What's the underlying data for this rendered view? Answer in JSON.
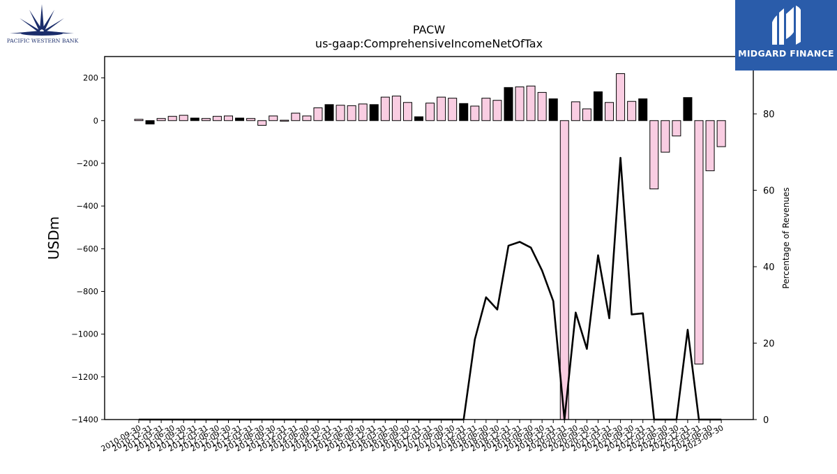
{
  "branding": {
    "left_logo_text": "PACIFIC WESTERN BANK",
    "right_logo_text": "MIDGARD FINANCE",
    "right_logo_color": "#2a5caa",
    "left_logo_color": "#1b2d6b"
  },
  "chart_data": {
    "type": "bar",
    "title": "PACW",
    "subtitle": "us-gaap:ComprehensiveIncomeNetOfTax",
    "ylabel": "USDm",
    "y2label": "Percentage of Revenues",
    "ylim": [
      -1400,
      300
    ],
    "y2lim": [
      0,
      95
    ],
    "yticks": [
      200,
      0,
      -200,
      -400,
      -600,
      -800,
      -1000,
      -1200,
      -1400
    ],
    "y2ticks": [
      80,
      60,
      40,
      20,
      0
    ],
    "bar_colors": {
      "positive": "#000000",
      "default": "#f9cde2",
      "edge": "#000000"
    },
    "categories": [
      "2010-09-30",
      "2010-12-31",
      "2011-03-31",
      "2011-06-30",
      "2011-09-30",
      "2011-12-31",
      "2012-03-31",
      "2012-06-30",
      "2012-09-30",
      "2012-12-31",
      "2013-03-31",
      "2013-06-30",
      "2013-09-30",
      "2013-12-31",
      "2014-03-31",
      "2014-06-30",
      "2014-09-30",
      "2014-12-31",
      "2015-03-31",
      "2015-06-30",
      "2015-09-30",
      "2015-12-31",
      "2016-03-31",
      "2016-06-30",
      "2016-09-30",
      "2016-12-31",
      "2017-03-31",
      "2017-06-30",
      "2017-09-30",
      "2017-12-31",
      "2018-03-31",
      "2018-06-30",
      "2018-09-30",
      "2018-12-31",
      "2019-03-31",
      "2019-06-30",
      "2019-09-30",
      "2019-12-31",
      "2020-03-31",
      "2020-06-30",
      "2020-09-30",
      "2020-12-31",
      "2021-03-31",
      "2021-06-30",
      "2021-09-30",
      "2021-12-31",
      "2022-03-31",
      "2022-06-30",
      "2022-09-30",
      "2022-12-31",
      "2023-03-31",
      "2023-06-30",
      "2023-09-30"
    ],
    "series": [
      {
        "kind": "bar",
        "values": [
          6,
          -16,
          10,
          20,
          25,
          12,
          10,
          20,
          22,
          12,
          10,
          -22,
          22,
          2,
          35,
          22,
          60,
          75,
          72,
          70,
          78,
          75,
          110,
          115,
          85,
          18,
          82,
          110,
          105,
          80,
          68,
          105,
          95,
          155,
          158,
          162,
          132,
          102,
          -1400,
          88,
          55,
          135,
          85,
          220,
          90,
          102,
          -320,
          -148,
          -72,
          108,
          -1140,
          -235,
          -122
        ],
        "highlight": [
          false,
          true,
          false,
          false,
          false,
          true,
          false,
          false,
          false,
          true,
          false,
          false,
          false,
          false,
          false,
          false,
          false,
          true,
          false,
          false,
          false,
          true,
          false,
          false,
          false,
          true,
          false,
          false,
          false,
          true,
          false,
          false,
          false,
          true,
          false,
          false,
          false,
          true,
          false,
          false,
          false,
          true,
          false,
          false,
          false,
          true,
          false,
          false,
          false,
          true,
          false,
          false,
          false
        ]
      },
      {
        "kind": "line",
        "axis": "right",
        "values": [
          0,
          0,
          0,
          0,
          0,
          0,
          0,
          0,
          0,
          0,
          0,
          0,
          0,
          0,
          0,
          0,
          0,
          0,
          0,
          0,
          0,
          0,
          0,
          0,
          0,
          0,
          0,
          0,
          0,
          0,
          21,
          32,
          28.8,
          45.5,
          46.5,
          45,
          39,
          31,
          0,
          28,
          18.5,
          43,
          26.5,
          68.5,
          27.5,
          27.8,
          0,
          0,
          0,
          23.5,
          0,
          0,
          0
        ]
      }
    ]
  }
}
